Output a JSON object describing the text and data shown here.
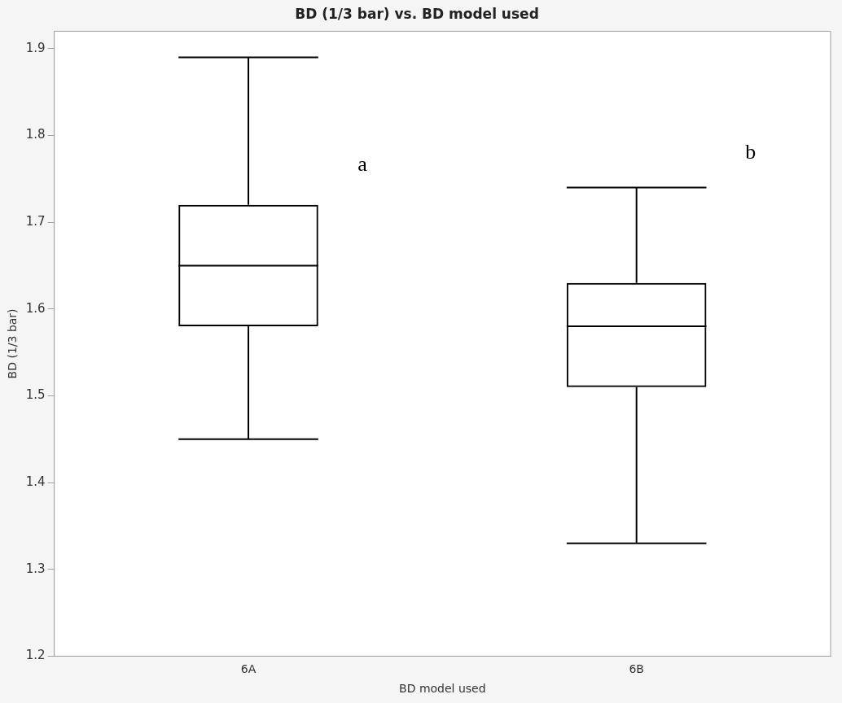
{
  "chart_data": {
    "type": "box",
    "title": "BD (1/3 bar) vs. BD model used",
    "xlabel": "BD model used",
    "ylabel": "BD (1/3 bar)",
    "categories": [
      "6A",
      "6B"
    ],
    "boxes": [
      {
        "low": 1.45,
        "q1": 1.58,
        "median": 1.65,
        "q3": 1.72,
        "high": 1.89
      },
      {
        "low": 1.33,
        "q1": 1.51,
        "median": 1.58,
        "q3": 1.63,
        "high": 1.74
      }
    ],
    "color": "#000000",
    "ylim": [
      1.2,
      1.92
    ],
    "yticks": [
      1.2,
      1.3,
      1.4,
      1.5,
      1.6,
      1.7,
      1.8,
      1.9
    ],
    "grid": false,
    "legend": false,
    "annotations": [
      "a",
      "b"
    ]
  }
}
